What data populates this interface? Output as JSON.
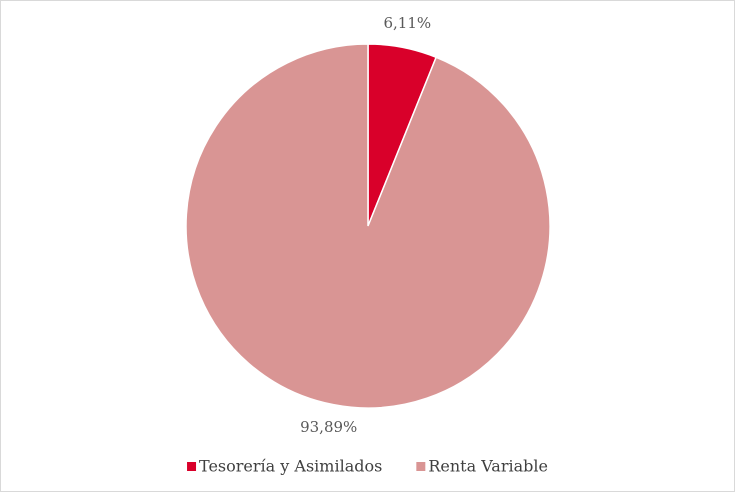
{
  "chart_data": {
    "type": "pie",
    "categories": [
      "Tesorería y Asimilados",
      "Renta Variable"
    ],
    "values": [
      6.11,
      93.89
    ],
    "value_labels": [
      "6,11%",
      "93,89%"
    ],
    "colors": [
      "#d9002a",
      "#d99594"
    ],
    "legend": "bottom"
  }
}
